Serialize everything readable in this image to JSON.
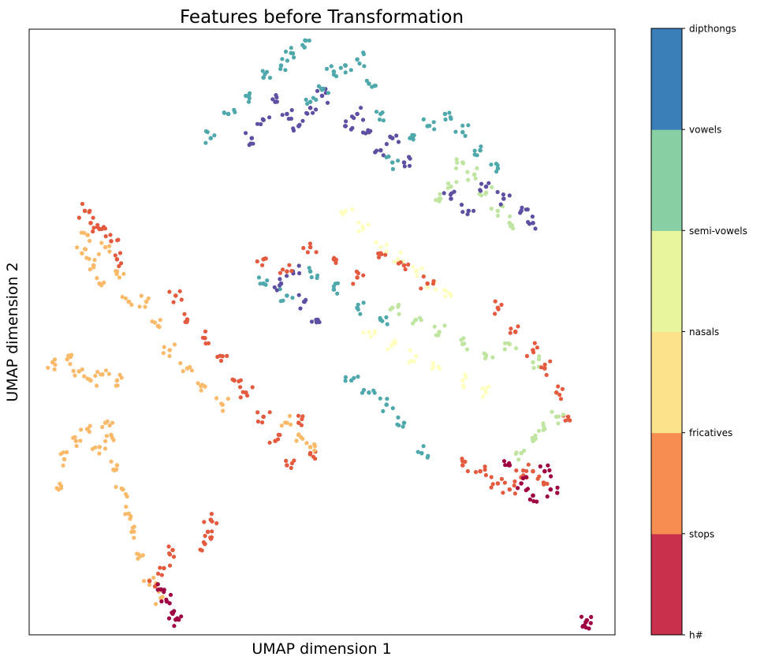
{
  "chart_data": {
    "type": "scatter",
    "title": "Features before Transformation",
    "xlabel": "UMAP dimension 1",
    "ylabel": "UMAP dimension 2",
    "xlim": [
      0,
      100
    ],
    "ylim": [
      0,
      100
    ],
    "x_ticks_visible": false,
    "y_ticks_visible": false,
    "grid": false,
    "colorbar": {
      "ticks": [
        "h#",
        "stops",
        "fricatives",
        "nasals",
        "semi-vowels",
        "vowels",
        "dipthongs"
      ],
      "colors": [
        "#c9304b",
        "#f88d52",
        "#fde28c",
        "#e8f59c",
        "#88cfa4",
        "#3a7fb8"
      ]
    },
    "point_colors": {
      "h#": "#9e0142",
      "stops": "#e45a3f",
      "fricatives": "#fbb96a",
      "nasals": "#ffffbf",
      "semi-vowels": "#bfe5a0",
      "vowels": "#4fa8ab",
      "dipthongs": "#5e4fa2"
    },
    "clusters": [
      {
        "category": "fricatives",
        "x": [
          4,
          6.5,
          8.5,
          10.5,
          12.5,
          15
        ],
        "y": [
          45,
          45.5,
          43.5,
          42,
          43,
          42
        ]
      },
      {
        "category": "fricatives",
        "x": [
          5,
          6,
          8,
          10,
          12,
          13,
          14
        ],
        "y": [
          24,
          29,
          32,
          34,
          31,
          35,
          33
        ]
      },
      {
        "category": "fricatives",
        "x": [
          15,
          16,
          17,
          17.5,
          19,
          20.5,
          22.5
        ],
        "y": [
          28,
          24,
          20,
          17,
          13,
          9,
          6
        ]
      },
      {
        "category": "stops",
        "x": [
          21.5,
          23,
          24.5
        ],
        "y": [
          8,
          11,
          14
        ]
      },
      {
        "category": "h#",
        "x": [
          22.5,
          23.5,
          24.5,
          25
        ],
        "y": [
          7.5,
          5.5,
          3.5,
          2.5
        ]
      },
      {
        "category": "stops",
        "x": [
          30,
          30.5,
          31
        ],
        "y": [
          15,
          17,
          19
        ]
      },
      {
        "category": "h#",
        "x": [
          95,
          95.2
        ],
        "y": [
          2.1,
          2.4
        ]
      },
      {
        "category": "fricatives",
        "x": [
          9,
          10,
          11,
          12,
          13,
          15,
          17
        ],
        "y": [
          63,
          66,
          61,
          58,
          64,
          60,
          55
        ]
      },
      {
        "category": "stops",
        "x": [
          9.5,
          10.5,
          12,
          14,
          15
        ],
        "y": [
          70,
          68,
          67,
          65,
          62
        ]
      },
      {
        "category": "fricatives",
        "x": [
          20,
          22,
          24,
          27,
          30,
          33
        ],
        "y": [
          55,
          51,
          47,
          44,
          41,
          38
        ]
      },
      {
        "category": "stops",
        "x": [
          25,
          27,
          30,
          33,
          35,
          37
        ],
        "y": [
          56,
          52,
          49,
          46,
          42,
          40
        ]
      },
      {
        "category": "vowels",
        "x": [
          31,
          34,
          37,
          40,
          43,
          45,
          47
        ],
        "y": [
          82,
          86,
          89,
          92,
          94,
          96,
          97
        ]
      },
      {
        "category": "dipthongs",
        "x": [
          38,
          40,
          42,
          44,
          46,
          48,
          50
        ],
        "y": [
          82,
          85,
          88,
          86,
          84,
          87,
          89
        ]
      },
      {
        "category": "vowels",
        "x": [
          48,
          50,
          52,
          54,
          56,
          58,
          60
        ],
        "y": [
          88,
          90,
          93,
          94,
          95,
          91,
          86
        ]
      },
      {
        "category": "dipthongs",
        "x": [
          54,
          56,
          58,
          60,
          62,
          64
        ],
        "y": [
          84,
          86,
          83,
          80,
          82,
          78
        ]
      },
      {
        "category": "vowels",
        "x": [
          62,
          65,
          68,
          71,
          74,
          77,
          80
        ],
        "y": [
          78,
          82,
          84,
          86,
          83,
          80,
          77
        ]
      },
      {
        "category": "semi-vowels",
        "x": [
          70,
          72,
          74,
          76,
          78,
          80,
          82
        ],
        "y": [
          72,
          74,
          78,
          76,
          73,
          70,
          68
        ]
      },
      {
        "category": "dipthongs",
        "x": [
          72,
          75,
          78,
          81,
          84,
          86
        ],
        "y": [
          72,
          70,
          74,
          72,
          70,
          68
        ]
      },
      {
        "category": "nasals",
        "x": [
          54,
          57,
          60,
          63,
          66,
          69,
          72
        ],
        "y": [
          70,
          67,
          64,
          62,
          60,
          58,
          56
        ]
      },
      {
        "category": "vowels",
        "x": [
          40,
          44,
          48,
          52,
          56,
          60
        ],
        "y": [
          58,
          56,
          60,
          57,
          54,
          52
        ]
      },
      {
        "category": "dipthongs",
        "x": [
          43,
          45,
          47,
          49
        ],
        "y": [
          58,
          60,
          55,
          52
        ]
      },
      {
        "category": "stops",
        "x": [
          40,
          44,
          48,
          52,
          56,
          60,
          64,
          68
        ],
        "y": [
          62,
          60,
          64,
          62,
          59,
          63,
          61,
          58
        ]
      },
      {
        "category": "nasals",
        "x": [
          58,
          62,
          66,
          70,
          74,
          78
        ],
        "y": [
          50,
          48,
          46,
          44,
          42,
          40
        ]
      },
      {
        "category": "semi-vowels",
        "x": [
          62,
          66,
          70,
          74,
          78,
          82,
          86
        ],
        "y": [
          54,
          52,
          50,
          48,
          46,
          48,
          45
        ]
      },
      {
        "category": "vowels",
        "x": [
          55,
          58,
          61,
          64,
          67
        ],
        "y": [
          42,
          40,
          38,
          35,
          30
        ]
      },
      {
        "category": "stops",
        "x": [
          80,
          83,
          86,
          88,
          90,
          92
        ],
        "y": [
          54,
          50,
          47,
          44,
          40,
          36
        ]
      },
      {
        "category": "stops",
        "x": [
          74,
          77,
          80,
          82,
          84,
          86,
          88
        ],
        "y": [
          28,
          27,
          25,
          24,
          26,
          27,
          25
        ]
      },
      {
        "category": "h#",
        "x": [
          82,
          84,
          86,
          88,
          89
        ],
        "y": [
          28,
          25,
          23,
          27,
          24
        ]
      },
      {
        "category": "semi-vowels",
        "x": [
          84,
          86,
          88,
          90
        ],
        "y": [
          30,
          32,
          34,
          36
        ]
      },
      {
        "category": "stops",
        "x": [
          40,
          42,
          44,
          46,
          48
        ],
        "y": [
          36,
          32,
          28,
          35,
          30
        ]
      },
      {
        "category": "fricatives",
        "x": [
          44,
          46,
          48
        ],
        "y": [
          35,
          33,
          31
        ]
      }
    ]
  }
}
